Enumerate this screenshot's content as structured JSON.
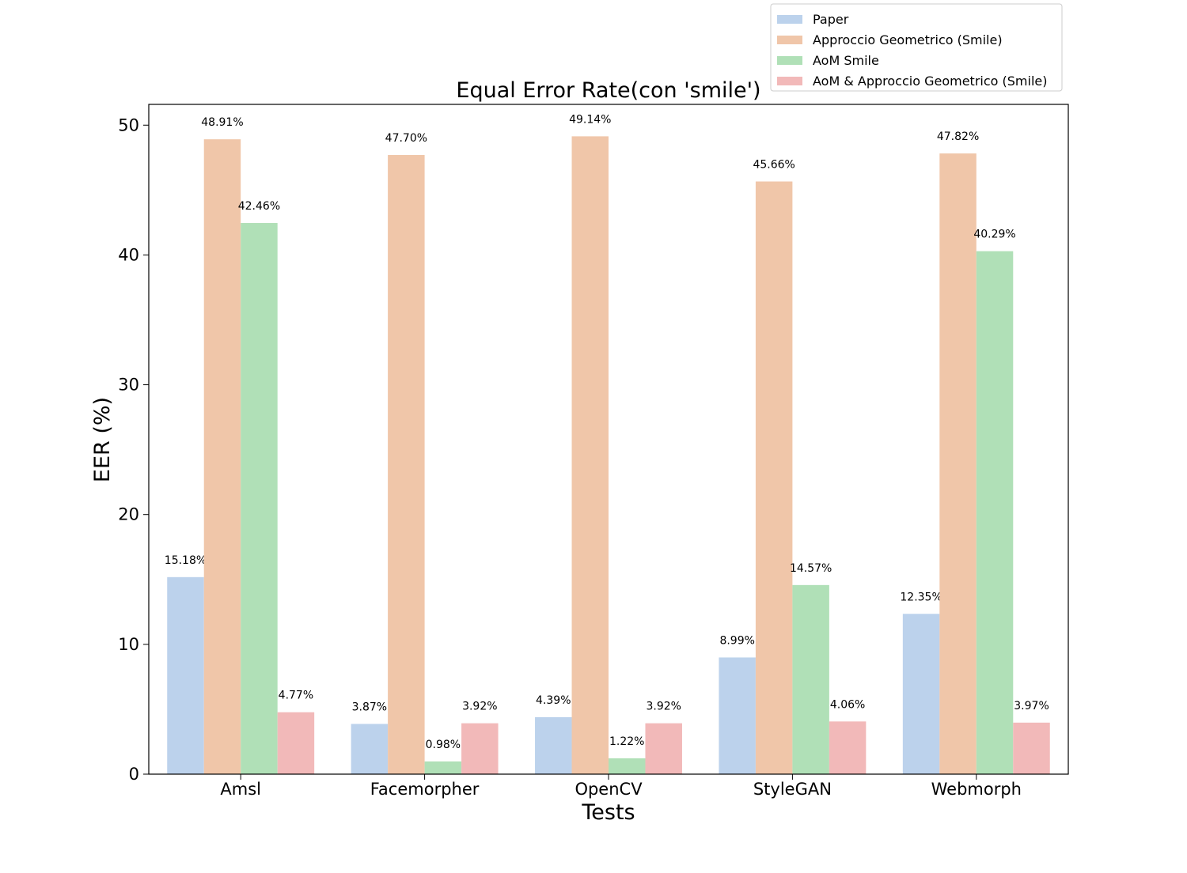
{
  "chart_data": {
    "type": "bar",
    "title": "Equal Error Rate(con 'smile')",
    "xlabel": "Tests",
    "ylabel": "EER (%)",
    "ylim": [
      0,
      51.6
    ],
    "yticks": [
      0,
      10,
      20,
      30,
      40,
      50
    ],
    "categories": [
      "Amsl",
      "Facemorpher",
      "OpenCV",
      "StyleGAN",
      "Webmorph"
    ],
    "series": [
      {
        "name": "Paper",
        "color": "#bcd2ec",
        "values": [
          15.18,
          3.87,
          4.39,
          8.99,
          12.35
        ],
        "labels": [
          "15.18%",
          "3.87%",
          "4.39%",
          "8.99%",
          "12.35%"
        ]
      },
      {
        "name": "Approccio Geometrico (Smile)",
        "color": "#f0c6a9",
        "values": [
          48.91,
          47.7,
          49.14,
          45.66,
          47.82
        ],
        "labels": [
          "48.91%",
          "47.70%",
          "49.14%",
          "45.66%",
          "47.82%"
        ]
      },
      {
        "name": "AoM Smile",
        "color": "#b0e0b7",
        "values": [
          42.46,
          0.98,
          1.22,
          14.57,
          40.29
        ],
        "labels": [
          "42.46%",
          "0.98%",
          "1.22%",
          "14.57%",
          "40.29%"
        ]
      },
      {
        "name": "AoM & Approccio Geometrico (Smile)",
        "color": "#f2b9b9",
        "values": [
          4.77,
          3.92,
          3.92,
          4.06,
          3.97
        ],
        "labels": [
          "4.77%",
          "3.92%",
          "3.92%",
          "4.06%",
          "3.97%"
        ]
      }
    ],
    "legend_position": "upper right, above plot",
    "grid": false
  }
}
